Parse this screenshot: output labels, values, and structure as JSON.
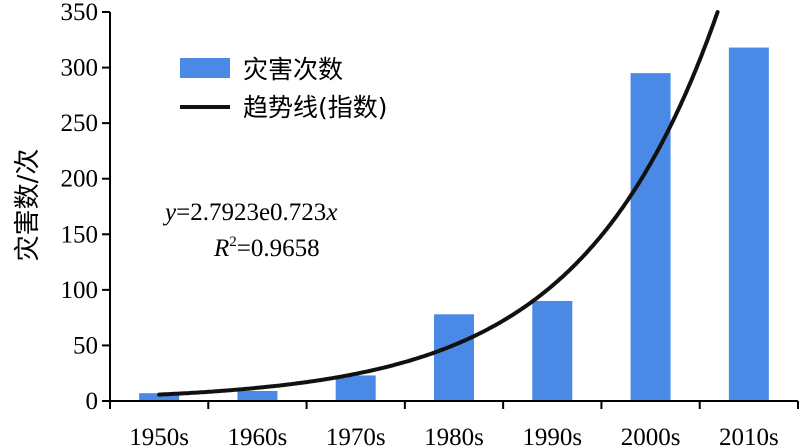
{
  "chart_data": {
    "type": "bar",
    "categories": [
      "1950s",
      "1960s",
      "1970s",
      "1980s",
      "1990s",
      "2000s",
      "2010s"
    ],
    "series": [
      {
        "name": "灾害次数",
        "values": [
          7,
          9,
          23,
          78,
          90,
          295,
          318
        ]
      }
    ],
    "trendline": {
      "name": "趋势线(指数)",
      "type": "exponential",
      "a": 2.7923,
      "b": 0.723,
      "equation_prefix": "y",
      "equation_body": "=2.7923e0.723",
      "equation_var": "x",
      "r2_symbol": "R",
      "r2_sup": "2",
      "r2_body": "=0.9658"
    },
    "xlabel": "",
    "ylabel": "灾害数/次",
    "ylim": [
      0,
      350
    ],
    "yticks": [
      0,
      50,
      100,
      150,
      200,
      250,
      300,
      350
    ],
    "grid": false,
    "legend_position": "top-left",
    "colors": {
      "bar": "#4a8ae6",
      "trend": "#111111",
      "axis": "#000000"
    }
  }
}
